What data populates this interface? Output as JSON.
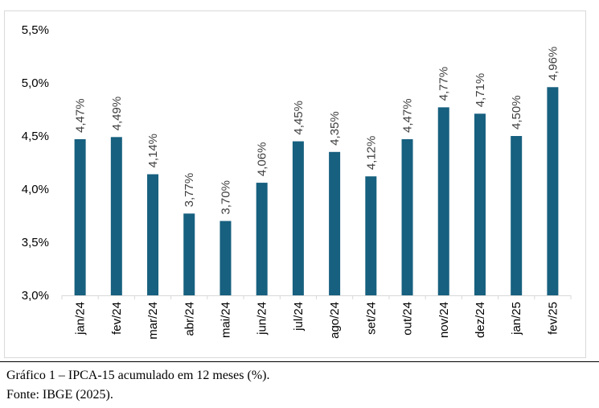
{
  "chart_data": {
    "type": "bar",
    "categories": [
      "jan/24",
      "fev/24",
      "mar/24",
      "abr/24",
      "mai/24",
      "jun/24",
      "jul/24",
      "ago/24",
      "set/24",
      "out/24",
      "nov/24",
      "dez/24",
      "jan/25",
      "fev/25"
    ],
    "values": [
      4.47,
      4.49,
      4.14,
      3.77,
      3.7,
      4.06,
      4.45,
      4.35,
      4.12,
      4.47,
      4.77,
      4.71,
      4.5,
      4.96
    ],
    "data_labels": [
      "4,47%",
      "4,49%",
      "4,14%",
      "3,77%",
      "3,70%",
      "4,06%",
      "4,45%",
      "4,35%",
      "4,12%",
      "4,47%",
      "4,77%",
      "4,71%",
      "4,50%",
      "4,96%"
    ],
    "ylim": [
      3.0,
      5.5
    ],
    "yticks": [
      3.0,
      3.5,
      4.0,
      4.5,
      5.0,
      5.5
    ],
    "ytick_labels": [
      "3,0%",
      "3,5%",
      "4,0%",
      "4,5%",
      "5,0%",
      "5,5%"
    ],
    "grid": false,
    "bar_color": "#17607f",
    "title": "",
    "xlabel": "",
    "ylabel": ""
  },
  "caption": {
    "title": "Gráfico 1 – IPCA-15 acumulado em 12 meses (%).",
    "source": "Fonte: IBGE (2025)."
  }
}
